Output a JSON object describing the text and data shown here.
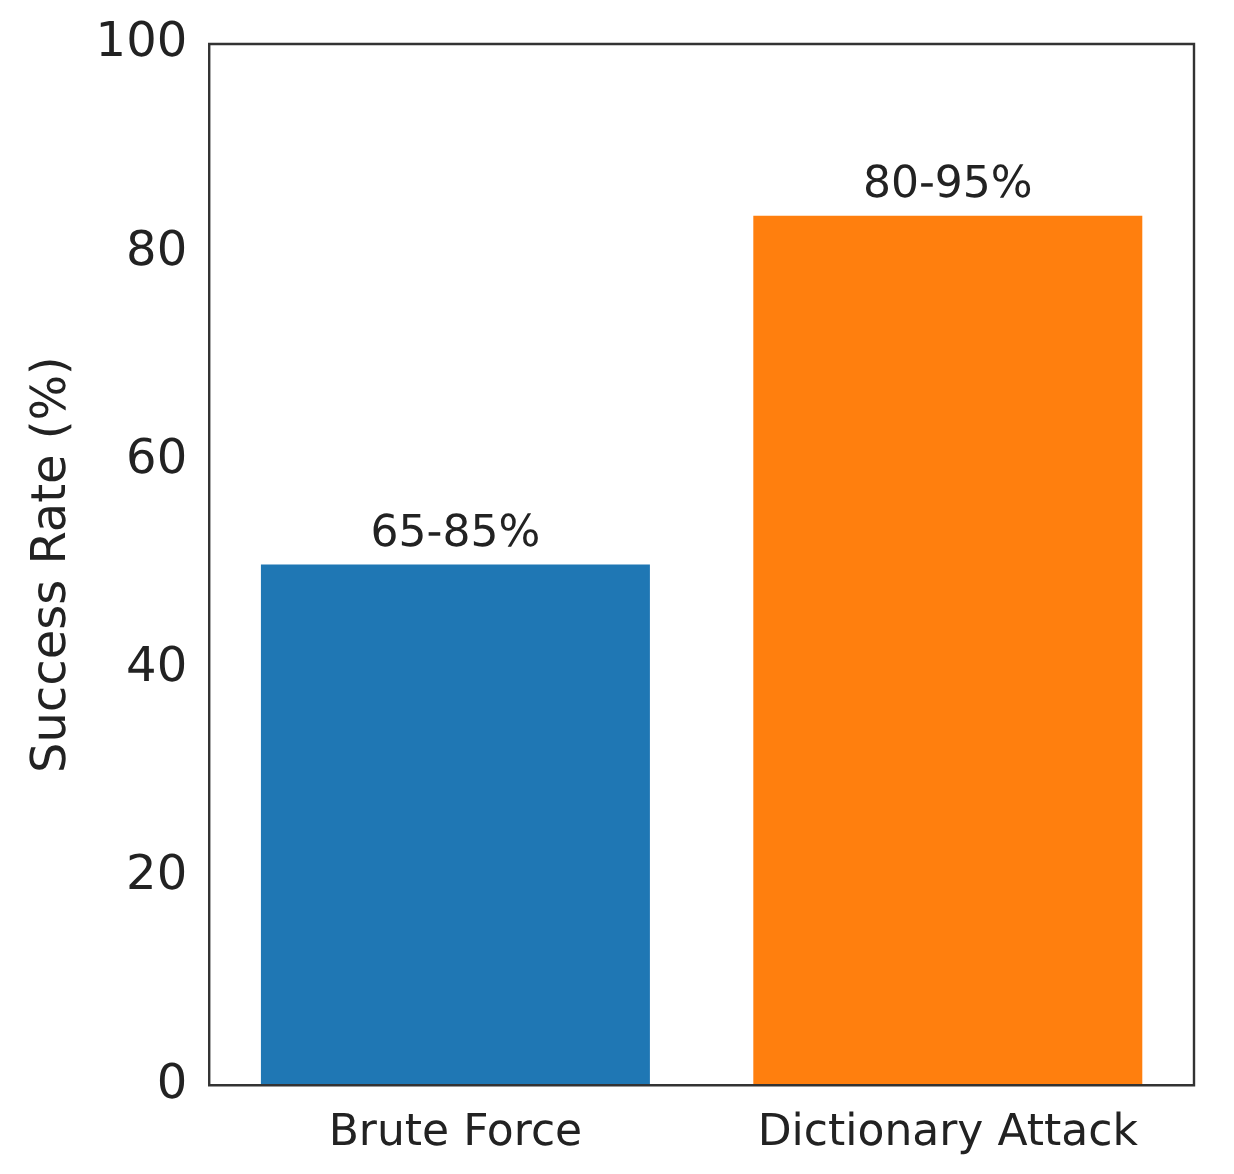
{
  "chart_data": {
    "type": "bar",
    "ylabel": "Success Rate (%)",
    "categories": [
      "Brute Force",
      "Dictionary Attack"
    ],
    "values": [
      50,
      83.5
    ],
    "colors": [
      "#1f77b4",
      "#ff7f0e"
    ],
    "annotations": [
      {
        "text": "65-85%",
        "x": "Brute Force",
        "y": 50
      },
      {
        "text": "80-95%",
        "x": "Dictionary Attack",
        "y": 83.5
      }
    ],
    "ylim": [
      0,
      100
    ],
    "yticks": [
      0,
      20,
      40,
      60,
      80,
      100
    ],
    "grid": false,
    "legend": false
  }
}
